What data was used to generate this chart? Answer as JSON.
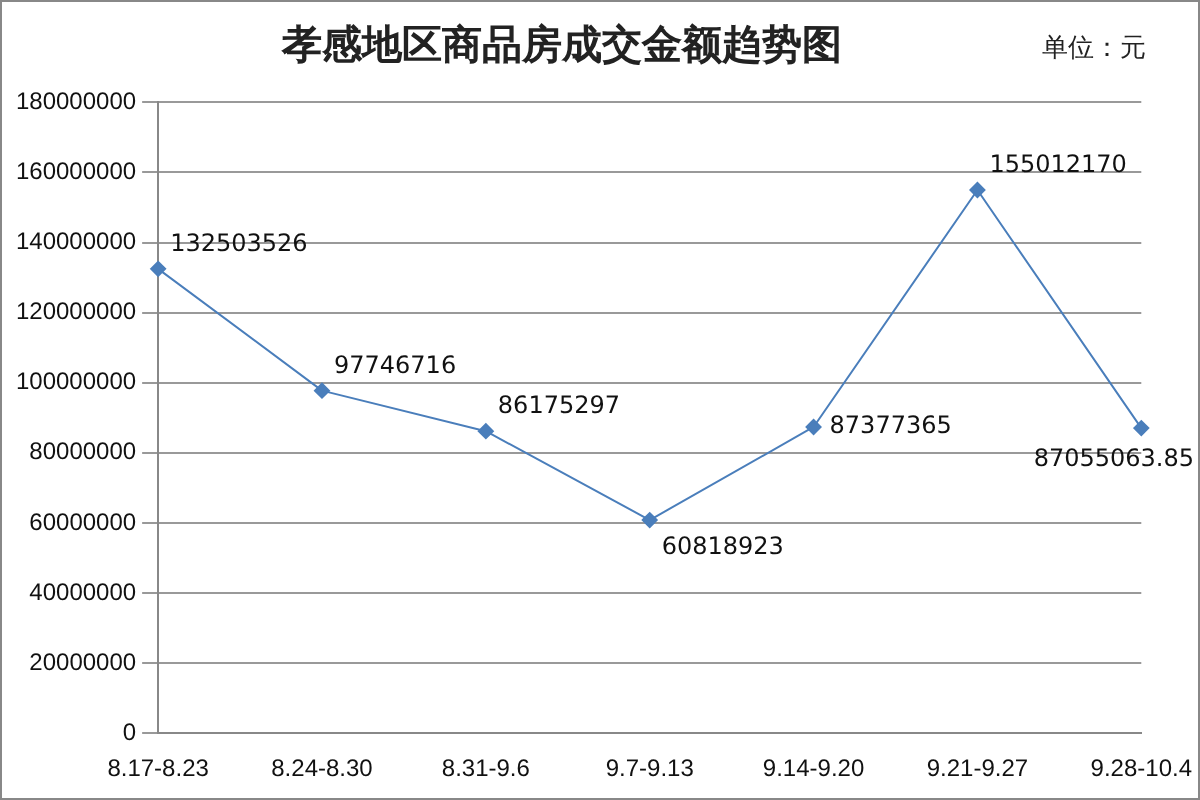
{
  "chart_data": {
    "type": "line",
    "title": "孝感地区商品房成交金额趋势图",
    "annotations": [
      "单位：元"
    ],
    "categories": [
      "8.17-8.23",
      "8.24-8.30",
      "8.31-9.6",
      "9.7-9.13",
      "9.14-9.20",
      "9.21-9.27",
      "9.28-10.4"
    ],
    "series": [
      {
        "color": "#4a7ebb",
        "values": [
          132503526,
          97746716,
          86175297,
          60818923,
          87377365,
          155012170,
          87055063.85
        ]
      }
    ],
    "ylim": [
      0,
      180000000
    ],
    "yticks": [
      0,
      20000000,
      40000000,
      60000000,
      80000000,
      100000000,
      120000000,
      140000000,
      160000000,
      180000000
    ],
    "grid": "y",
    "legend": false,
    "marker": "diamond",
    "line_style": "solid",
    "data_labels": true
  }
}
